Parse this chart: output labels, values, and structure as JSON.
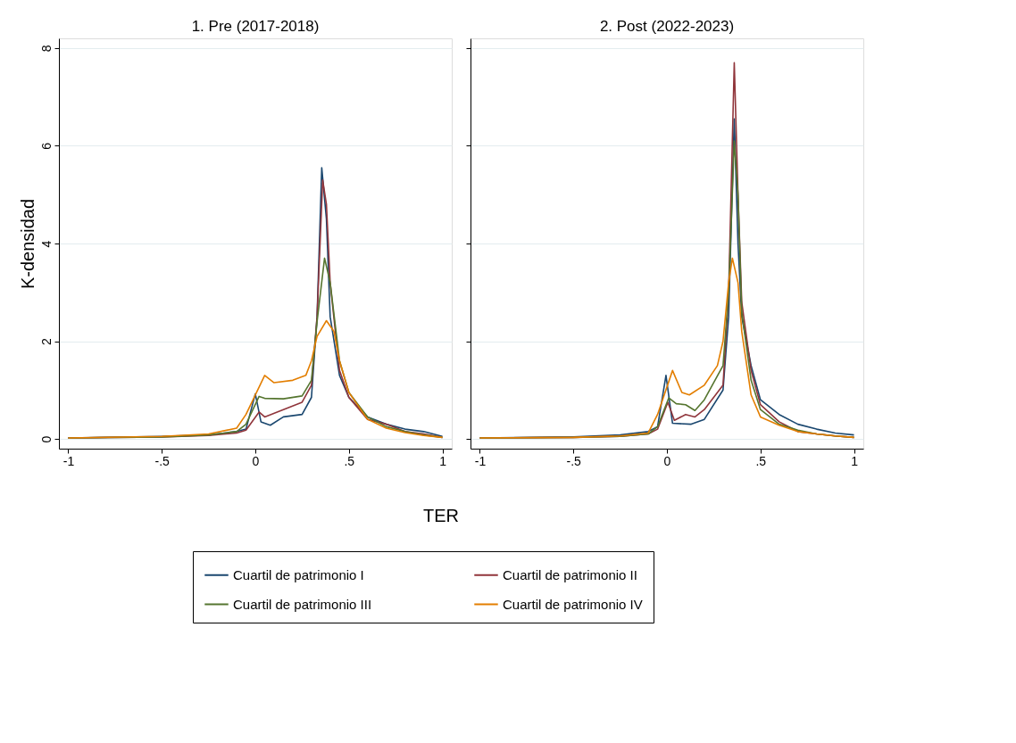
{
  "chart_data": [
    {
      "type": "line",
      "title": "1. Pre (2017-2018)",
      "ylabel": "K-densidad",
      "xlabel": "TER",
      "xlim": [
        -1.05,
        1.05
      ],
      "xticks": [
        {
          "value": -1,
          "label": "-1"
        },
        {
          "value": -0.5,
          "label": "-.5"
        },
        0,
        {
          "value": 0.5,
          "label": ".5"
        },
        1
      ],
      "ylim": [
        -0.2,
        8.2
      ],
      "yticks": [
        0,
        2,
        4,
        6,
        8
      ],
      "grid": "y",
      "legend": "bottom",
      "line_style": "solid",
      "marker": "none",
      "series": [
        {
          "name": "Cuartil de patrimonio I",
          "color": "#1a476f",
          "x": [
            -1,
            -0.5,
            -0.25,
            -0.1,
            -0.05,
            0,
            0.03,
            0.08,
            0.15,
            0.25,
            0.3,
            0.33,
            0.355,
            0.38,
            0.4,
            0.45,
            0.5,
            0.6,
            0.7,
            0.8,
            0.9,
            1
          ],
          "values": [
            0.02,
            0.05,
            0.08,
            0.15,
            0.2,
            0.92,
            0.35,
            0.28,
            0.45,
            0.5,
            0.85,
            2.5,
            5.55,
            4.5,
            2.5,
            1.3,
            0.85,
            0.45,
            0.3,
            0.2,
            0.15,
            0.05
          ]
        },
        {
          "name": "Cuartil de patrimonio II",
          "color": "#90353b",
          "x": [
            -1,
            -0.5,
            -0.25,
            -0.1,
            -0.05,
            0.02,
            0.05,
            0.15,
            0.25,
            0.3,
            0.33,
            0.36,
            0.38,
            0.4,
            0.45,
            0.5,
            0.6,
            0.7,
            0.8,
            0.9,
            1
          ],
          "values": [
            0.02,
            0.04,
            0.07,
            0.12,
            0.18,
            0.55,
            0.45,
            0.6,
            0.75,
            1.1,
            2.5,
            5.3,
            4.8,
            3.2,
            1.4,
            0.85,
            0.4,
            0.3,
            0.15,
            0.1,
            0.03
          ]
        },
        {
          "name": "Cuartil de patrimonio III",
          "color": "#55752f",
          "x": [
            -1,
            -0.5,
            -0.25,
            -0.1,
            -0.05,
            0.02,
            0.05,
            0.15,
            0.25,
            0.3,
            0.33,
            0.37,
            0.4,
            0.45,
            0.5,
            0.6,
            0.7,
            0.8,
            0.9,
            1
          ],
          "values": [
            0.02,
            0.04,
            0.08,
            0.15,
            0.3,
            0.87,
            0.83,
            0.82,
            0.88,
            1.2,
            2.4,
            3.7,
            3.2,
            1.6,
            0.95,
            0.45,
            0.25,
            0.15,
            0.08,
            0.03
          ]
        },
        {
          "name": "Cuartil de patrimonio IV",
          "color": "#e37e00",
          "x": [
            -1,
            -0.5,
            -0.25,
            -0.1,
            -0.05,
            0.05,
            0.1,
            0.2,
            0.27,
            0.3,
            0.33,
            0.38,
            0.42,
            0.45,
            0.5,
            0.6,
            0.7,
            0.8,
            0.9,
            1
          ],
          "values": [
            0.02,
            0.05,
            0.1,
            0.22,
            0.5,
            1.3,
            1.15,
            1.2,
            1.3,
            1.6,
            2.1,
            2.42,
            2.2,
            1.6,
            0.95,
            0.4,
            0.22,
            0.13,
            0.07,
            0.03
          ]
        }
      ]
    },
    {
      "type": "line",
      "title": "2. Post (2022-2023)",
      "xlim": [
        -1.05,
        1.05
      ],
      "xticks": [
        {
          "value": -1,
          "label": "-1"
        },
        {
          "value": -0.5,
          "label": "-.5"
        },
        0,
        {
          "value": 0.5,
          "label": ".5"
        },
        1
      ],
      "ylim": [
        -0.2,
        8.2
      ],
      "yticks": [
        0,
        2,
        4,
        6,
        8
      ],
      "grid": "y",
      "tick_labels": "x",
      "line_style": "solid",
      "marker": "none",
      "series": [
        {
          "name": "Cuartil de patrimonio I",
          "color": "#1a476f",
          "x": [
            -1,
            -0.5,
            -0.25,
            -0.1,
            -0.05,
            -0.005,
            0.03,
            0.13,
            0.2,
            0.3,
            0.33,
            0.36,
            0.38,
            0.4,
            0.45,
            0.5,
            0.6,
            0.7,
            0.8,
            0.9,
            1
          ],
          "values": [
            0.02,
            0.04,
            0.08,
            0.15,
            0.25,
            1.3,
            0.32,
            0.3,
            0.4,
            1.0,
            2.5,
            6.55,
            4.0,
            2.5,
            1.5,
            0.8,
            0.5,
            0.3,
            0.2,
            0.12,
            0.08
          ]
        },
        {
          "name": "Cuartil de patrimonio II",
          "color": "#90353b",
          "x": [
            -1,
            -0.5,
            -0.25,
            -0.1,
            -0.05,
            0.005,
            0.04,
            0.1,
            0.15,
            0.2,
            0.3,
            0.33,
            0.36,
            0.38,
            0.4,
            0.45,
            0.5,
            0.6,
            0.7,
            0.8,
            0.9,
            1
          ],
          "values": [
            0.02,
            0.03,
            0.05,
            0.1,
            0.2,
            0.75,
            0.38,
            0.5,
            0.45,
            0.6,
            1.1,
            3.0,
            7.7,
            5.0,
            2.8,
            1.4,
            0.7,
            0.35,
            0.15,
            0.1,
            0.06,
            0.03
          ]
        },
        {
          "name": "Cuartil de patrimonio III",
          "color": "#55752f",
          "x": [
            -1,
            -0.5,
            -0.25,
            -0.1,
            -0.05,
            0.01,
            0.05,
            0.1,
            0.15,
            0.2,
            0.3,
            0.33,
            0.36,
            0.38,
            0.4,
            0.45,
            0.5,
            0.6,
            0.7,
            0.8,
            0.9,
            1
          ],
          "values": [
            0.02,
            0.03,
            0.05,
            0.1,
            0.25,
            0.84,
            0.72,
            0.7,
            0.58,
            0.8,
            1.5,
            3.0,
            6.1,
            5.0,
            2.6,
            1.2,
            0.6,
            0.3,
            0.18,
            0.1,
            0.06,
            0.03
          ]
        },
        {
          "name": "Cuartil de patrimonio IV",
          "color": "#e37e00",
          "x": [
            -1,
            -0.5,
            -0.25,
            -0.1,
            -0.05,
            0.03,
            0.08,
            0.12,
            0.2,
            0.27,
            0.3,
            0.33,
            0.35,
            0.38,
            0.4,
            0.45,
            0.5,
            0.6,
            0.7,
            0.8,
            0.9,
            1
          ],
          "values": [
            0.02,
            0.03,
            0.06,
            0.12,
            0.5,
            1.4,
            0.95,
            0.9,
            1.1,
            1.5,
            2.0,
            3.2,
            3.7,
            3.2,
            2.2,
            0.9,
            0.45,
            0.28,
            0.15,
            0.1,
            0.06,
            0.03
          ]
        }
      ]
    }
  ]
}
